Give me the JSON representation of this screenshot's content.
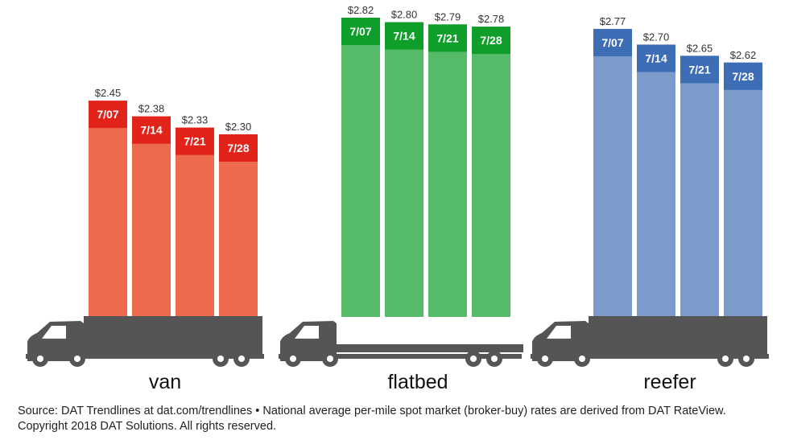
{
  "chart_data": {
    "type": "bar",
    "groups": [
      {
        "name": "van",
        "color": "#EE6A4E",
        "header_color": "#E2231A",
        "bars": [
          {
            "label": "7/07",
            "value": 2.45,
            "value_label": "$2.45"
          },
          {
            "label": "7/14",
            "value": 2.38,
            "value_label": "$2.38"
          },
          {
            "label": "7/21",
            "value": 2.33,
            "value_label": "$2.33"
          },
          {
            "label": "7/28",
            "value": 2.3,
            "value_label": "$2.30"
          }
        ]
      },
      {
        "name": "flatbed",
        "color": "#55BB68",
        "header_color": "#0E9E29",
        "bars": [
          {
            "label": "7/07",
            "value": 2.82,
            "value_label": "$2.82"
          },
          {
            "label": "7/14",
            "value": 2.8,
            "value_label": "$2.80"
          },
          {
            "label": "7/21",
            "value": 2.79,
            "value_label": "$2.79"
          },
          {
            "label": "7/28",
            "value": 2.78,
            "value_label": "$2.78"
          }
        ]
      },
      {
        "name": "reefer",
        "color": "#7B9CCB",
        "header_color": "#3D6DB5",
        "bars": [
          {
            "label": "7/07",
            "value": 2.77,
            "value_label": "$2.77"
          },
          {
            "label": "7/14",
            "value": 2.7,
            "value_label": "$2.70"
          },
          {
            "label": "7/21",
            "value": 2.65,
            "value_label": "$2.65"
          },
          {
            "label": "7/28",
            "value": 2.62,
            "value_label": "$2.62"
          }
        ]
      }
    ],
    "legend": "none",
    "grid": false
  },
  "colors": {
    "truck": "#555555"
  },
  "source_note": "Source: DAT Trendlines at dat.com/trendlines • National average per-mile spot market (broker-buy) rates are derived from DAT RateView. Copyright 2018 DAT Solutions. All rights reserved."
}
